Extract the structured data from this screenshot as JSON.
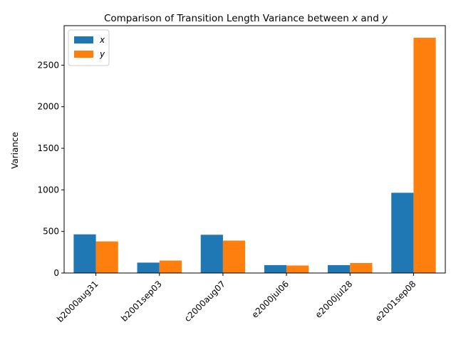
{
  "chart_data": {
    "type": "bar",
    "title": "Comparison of Transition Length Variance between x and y",
    "title_parts": {
      "prefix": "Comparison of Transition Length Variance between ",
      "var1": "x",
      "mid": " and ",
      "var2": "y"
    },
    "xlabel": "",
    "ylabel": "Variance",
    "categories": [
      "b2000aug31",
      "b2001sep03",
      "c2000aug07",
      "e2000jul06",
      "e2000jul28",
      "e2001sep08"
    ],
    "series": [
      {
        "name": "x",
        "color": "#1f77b4",
        "values": [
          465,
          125,
          460,
          95,
          95,
          965
        ]
      },
      {
        "name": "y",
        "color": "#ff7f0e",
        "values": [
          380,
          150,
          390,
          90,
          120,
          2830
        ]
      }
    ],
    "ylim": [
      0,
      2975
    ],
    "yticks": [
      0,
      500,
      1000,
      1500,
      2000,
      2500
    ],
    "ytick_labels": [
      "0",
      "500",
      "1000",
      "1500",
      "2000",
      "2500"
    ],
    "legend": {
      "placement": "top-left"
    },
    "grid": false
  }
}
